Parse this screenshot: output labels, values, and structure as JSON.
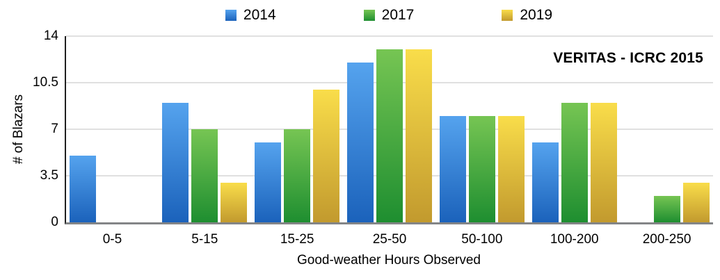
{
  "chart_data": {
    "type": "bar",
    "title": "VERITAS - ICRC 2015",
    "xlabel": "Good-weather Hours Observed",
    "ylabel": "# of Blazars",
    "categories": [
      "0-5",
      "5-15",
      "15-25",
      "25-50",
      "50-100",
      "100-200",
      "200-250"
    ],
    "series": [
      {
        "name": "2014",
        "color_top": "#55a3ee",
        "color_bottom": "#1b62bb",
        "values": [
          5,
          9,
          6,
          12,
          8,
          6,
          0
        ]
      },
      {
        "name": "2017",
        "color_top": "#76c553",
        "color_bottom": "#1e8e30",
        "values": [
          0,
          7,
          7,
          13,
          8,
          9,
          2
        ]
      },
      {
        "name": "2019",
        "color_top": "#f9dd4a",
        "color_bottom": "#c29a2e",
        "values": [
          0,
          3,
          10,
          13,
          8,
          9,
          3
        ]
      }
    ],
    "yticks": [
      0,
      3.5,
      7,
      10.5,
      14
    ],
    "ylim": [
      0,
      14
    ],
    "legend_position": "top",
    "grid": true,
    "colors": {
      "background": "#ffffff",
      "grid": "#e0e0e0",
      "y_axis_line": "#1f1f1f",
      "x_axis_line": "#838587",
      "text": "#000000"
    }
  }
}
